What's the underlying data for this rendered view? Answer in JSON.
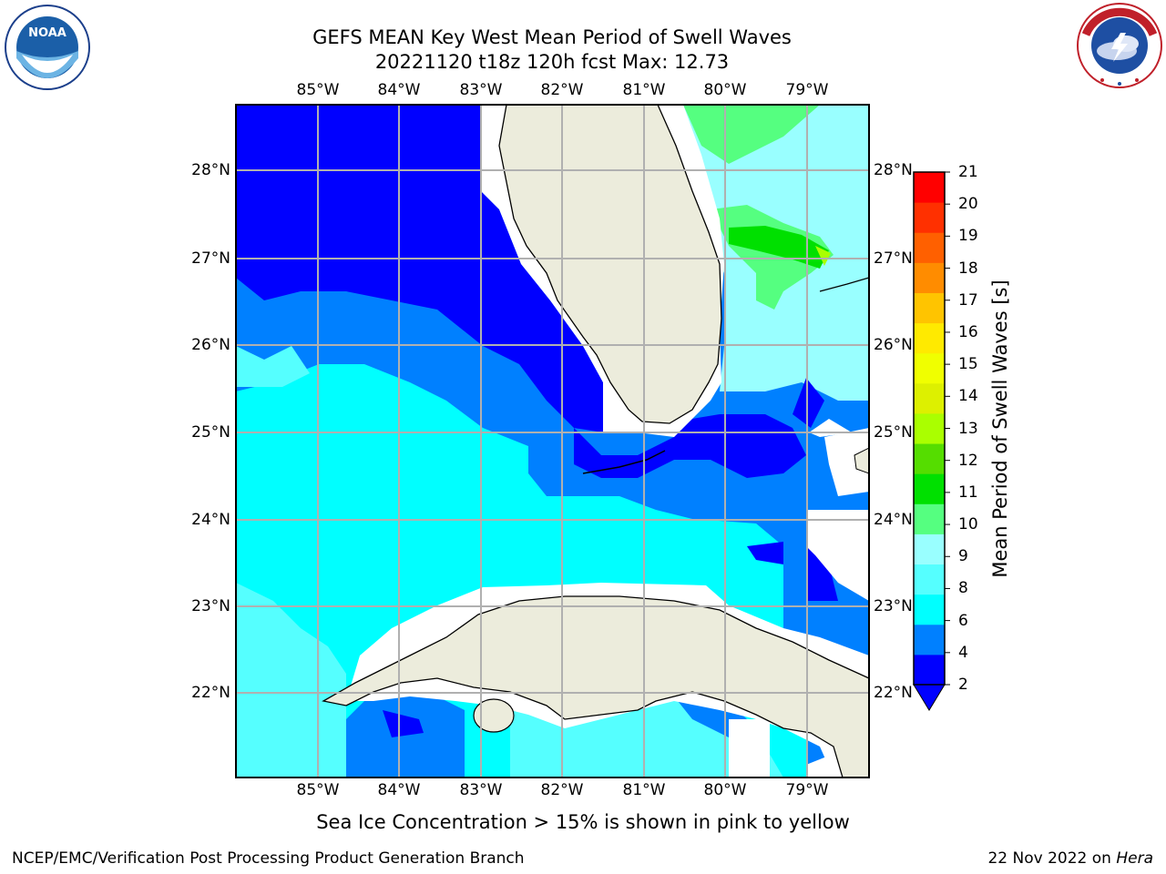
{
  "title_line1": "GEFS MEAN Key West Mean Period of Swell Waves",
  "title_line2": "20221120 t18z 120h fcst   Max: 12.73",
  "lon_ticks": [
    "85°W",
    "84°W",
    "83°W",
    "82°W",
    "81°W",
    "80°W",
    "79°W"
  ],
  "lat_ticks": [
    "28°N",
    "27°N",
    "26°N",
    "25°N",
    "24°N",
    "23°N",
    "22°N"
  ],
  "colorbar": {
    "label": "Mean Period of Swell Waves [s]",
    "ticks": [
      "21",
      "20",
      "19",
      "18",
      "17",
      "16",
      "15",
      "14",
      "13",
      "12",
      "11",
      "10",
      "9",
      "8",
      "6",
      "4",
      "2"
    ],
    "colors": [
      "#0000ff",
      "#0080ff",
      "#00ffff",
      "#55ffff",
      "#99ffff",
      "#55ff80",
      "#00e000",
      "#55dd00",
      "#aaff00",
      "#ddf000",
      "#f0ff00",
      "#ffea00",
      "#ffc400",
      "#ff8c00",
      "#ff6000",
      "#ff3000",
      "#ff0000"
    ]
  },
  "note": "Sea Ice Concentration > 15% is shown in pink to yellow",
  "footer_left": "NCEP/EMC/Verification Post Processing Product Generation Branch",
  "footer_date": "22 Nov 2022 on",
  "footer_machine": "Hera",
  "logos": {
    "noaa_text": "NOAA",
    "nws_text": "NATIONAL WEATHER SERVICE"
  }
}
